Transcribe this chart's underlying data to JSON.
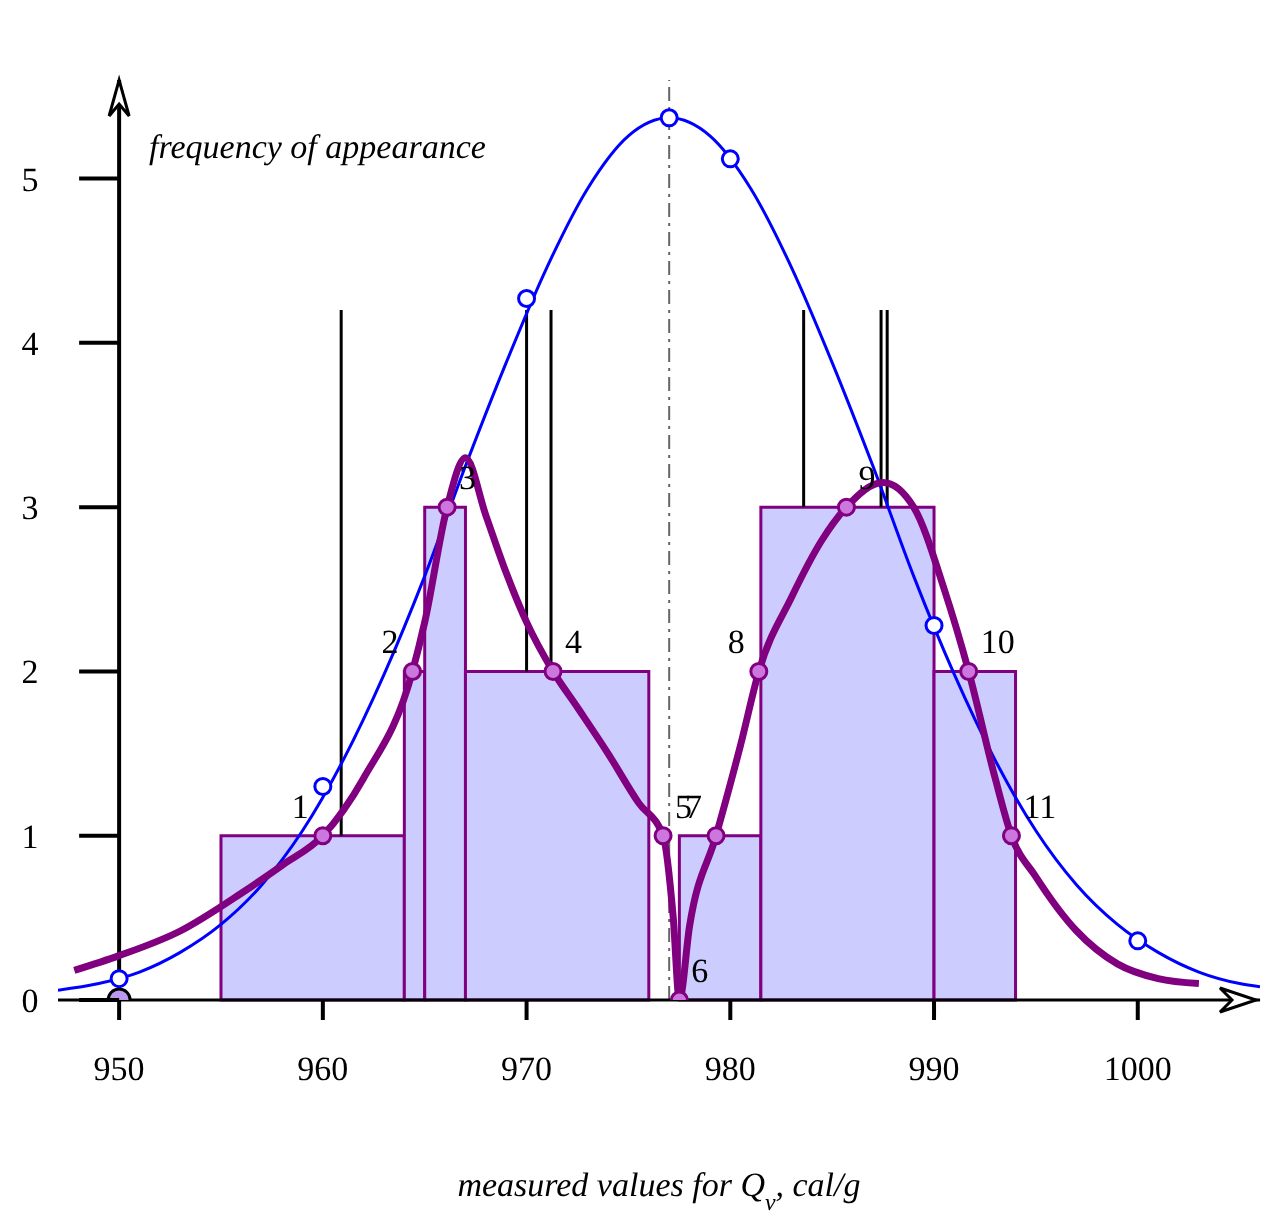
{
  "chart_data": {
    "type": "histogram",
    "ylabel": "frequency of appearance",
    "xlabel": "measured values for Q$_{v}$, cal/g",
    "bins": [
      955,
      964,
      965,
      967,
      976,
      977.5,
      981.5,
      990,
      994
    ],
    "values": [
      1,
      2,
      3,
      2,
      0,
      1,
      3,
      2
    ],
    "color": "#ccccff",
    "series": [
      {
        "type": "line",
        "color": "#000000",
        "marker": "none",
        "x": [
          960.9,
          960.9
        ],
        "values": [
          1,
          4.2
        ]
      },
      {
        "type": "line",
        "color": "#000000",
        "marker": "none",
        "x": [
          970,
          970
        ],
        "values": [
          2,
          4.2
        ]
      },
      {
        "type": "line",
        "color": "#000000",
        "marker": "none",
        "x": [
          971.2,
          971.2
        ],
        "values": [
          2,
          4.2
        ]
      },
      {
        "type": "line",
        "color": "#000000",
        "marker": "none",
        "x": [
          983.6,
          983.6
        ],
        "values": [
          3,
          4.2
        ]
      },
      {
        "type": "line",
        "color": "#000000",
        "marker": "none",
        "x": [
          987.4,
          987.4
        ],
        "values": [
          3,
          4.2
        ]
      },
      {
        "type": "line",
        "color": "#000000",
        "marker": "none",
        "x": [
          987.7,
          987.7
        ],
        "values": [
          3,
          4.2
        ]
      },
      {
        "type": "scatter",
        "color": "#bb99ee",
        "marker": "circle",
        "x": [
          950
        ],
        "values": [
          0
        ]
      },
      {
        "type": "line",
        "color": "#0000ff",
        "marker": "none",
        "x": [
          947,
          949,
          951,
          953,
          955,
          957,
          959,
          961,
          963,
          965,
          967,
          969,
          971,
          973,
          975,
          977,
          979,
          981,
          983,
          985,
          987,
          989,
          991,
          993,
          995,
          997,
          999,
          1001,
          1003,
          1005,
          1006
        ],
        "values": [
          0.06,
          0.1,
          0.17,
          0.29,
          0.46,
          0.7,
          1.03,
          1.46,
          1.98,
          2.58,
          3.25,
          3.88,
          4.46,
          4.94,
          5.26,
          5.37,
          5.26,
          4.94,
          4.46,
          3.88,
          3.25,
          2.58,
          1.98,
          1.46,
          1.03,
          0.7,
          0.46,
          0.29,
          0.17,
          0.1,
          0.08
        ]
      },
      {
        "type": "scatter",
        "color": "#0000ff",
        "marker": "circle",
        "x": [
          950,
          960,
          970,
          977,
          980,
          990,
          1000
        ],
        "values": [
          0.13,
          1.3,
          4.27,
          5.37,
          5.12,
          2.28,
          0.36
        ]
      },
      {
        "type": "line",
        "color": "#800080",
        "marker": "none",
        "x": [
          947.8,
          950,
          953,
          956,
          958,
          960,
          962,
          964.4,
          965,
          966.1,
          967,
          968,
          969,
          970,
          971.3,
          972.5,
          974,
          975.5,
          976.7,
          977.2,
          977.5,
          978,
          979.3,
          980.5,
          981.4,
          983,
          984.5,
          985.7,
          987.5,
          989,
          990.5,
          991.7,
          993,
          993.8,
          995,
          997,
          999,
          1001,
          1003
        ],
        "values": [
          0.18,
          0.27,
          0.42,
          0.65,
          0.82,
          1.0,
          1.35,
          2.0,
          2.3,
          3.0,
          3.3,
          2.95,
          2.6,
          2.3,
          2.0,
          1.78,
          1.5,
          1.2,
          1.0,
          0.5,
          0.0,
          0.45,
          1.0,
          1.55,
          2.0,
          2.45,
          2.8,
          3.0,
          3.15,
          3.0,
          2.5,
          2.0,
          1.35,
          1.0,
          0.75,
          0.42,
          0.22,
          0.13,
          0.1
        ]
      },
      {
        "type": "scatter",
        "color": "#cc77dd",
        "marker": "circle",
        "x": [
          960,
          964.4,
          966.1,
          971.3,
          976.7,
          977.5,
          979.3,
          981.4,
          985.7,
          991.7,
          993.8
        ],
        "values": [
          1,
          2,
          3,
          2,
          1,
          0,
          1,
          2,
          3,
          2,
          1
        ]
      }
    ],
    "annotations": [
      {
        "text": "1",
        "x": 960,
        "y": 1
      },
      {
        "text": "2",
        "x": 964.4,
        "y": 2
      },
      {
        "text": "3",
        "x": 966.1,
        "y": 3
      },
      {
        "text": "4",
        "x": 971.3,
        "y": 2
      },
      {
        "text": "5",
        "x": 976.7,
        "y": 1
      },
      {
        "text": "6",
        "x": 977.5,
        "y": 0
      },
      {
        "text": "7",
        "x": 979.3,
        "y": 1
      },
      {
        "text": "8",
        "x": 981.4,
        "y": 2
      },
      {
        "text": "9",
        "x": 985.7,
        "y": 3
      },
      {
        "text": "10",
        "x": 991.7,
        "y": 2
      },
      {
        "text": "11",
        "x": 993.8,
        "y": 1
      }
    ],
    "ref_lines": [
      {
        "axis": "x",
        "value": 977,
        "color": "#666666",
        "line_style": "dashed"
      }
    ],
    "xlim": [
      947,
      1006
    ],
    "ylim": [
      0,
      5.6
    ],
    "xticks": [
      950,
      960,
      970,
      980,
      990,
      1000
    ],
    "yticks": [
      0,
      1,
      2,
      3,
      4,
      5
    ]
  }
}
